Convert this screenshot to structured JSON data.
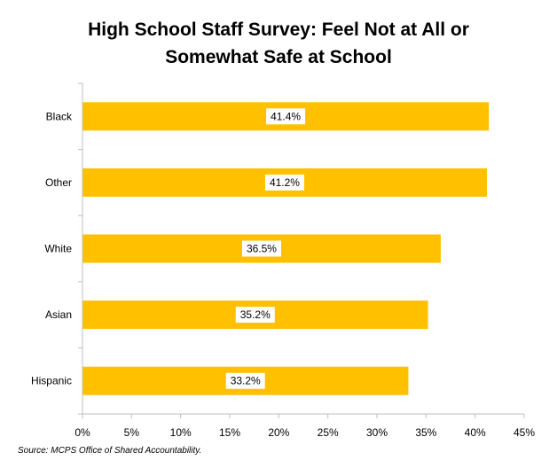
{
  "chart_data": {
    "type": "bar",
    "orientation": "horizontal",
    "title_line1": "High School Staff Survey: Feel Not at All or",
    "title_line2": "Somewhat Safe at School",
    "categories": [
      "Black",
      "Other",
      "White",
      "Asian",
      "Hispanic"
    ],
    "values": [
      41.4,
      41.2,
      36.5,
      35.2,
      33.2
    ],
    "data_labels": [
      "41.4%",
      "41.2%",
      "36.5%",
      "35.2%",
      "33.2%"
    ],
    "x_ticks": [
      "0%",
      "5%",
      "10%",
      "15%",
      "20%",
      "25%",
      "30%",
      "35%",
      "40%",
      "45%"
    ],
    "xlim": [
      0,
      45
    ],
    "bar_color": "#FFC000",
    "grid": false,
    "legend": "none"
  },
  "source_note": "Source: MCPS Office of Shared Accountability."
}
